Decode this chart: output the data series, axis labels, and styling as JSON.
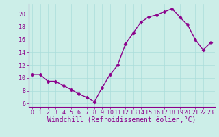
{
  "x": [
    0,
    1,
    2,
    3,
    4,
    5,
    6,
    7,
    8,
    9,
    10,
    11,
    12,
    13,
    14,
    15,
    16,
    17,
    18,
    19,
    20,
    21,
    22,
    23
  ],
  "y": [
    10.5,
    10.5,
    9.5,
    9.5,
    8.8,
    8.2,
    7.5,
    7.0,
    6.3,
    8.5,
    10.5,
    12.0,
    15.3,
    17.0,
    18.7,
    19.5,
    19.8,
    20.3,
    20.8,
    19.5,
    18.3,
    16.0,
    14.4,
    15.5
  ],
  "line_color": "#8B008B",
  "marker": "D",
  "marker_size": 2.5,
  "bg_color": "#cceee8",
  "grid_color": "#aaddda",
  "xlabel": "Windchill (Refroidissement éolien,°C)",
  "xlim": [
    -0.5,
    23.5
  ],
  "ylim": [
    5.5,
    21.5
  ],
  "yticks": [
    6,
    8,
    10,
    12,
    14,
    16,
    18,
    20
  ],
  "xticks": [
    0,
    1,
    2,
    3,
    4,
    5,
    6,
    7,
    8,
    9,
    10,
    11,
    12,
    13,
    14,
    15,
    16,
    17,
    18,
    19,
    20,
    21,
    22,
    23
  ],
  "tick_fontsize": 6,
  "xlabel_fontsize": 7,
  "line_width": 1.0
}
